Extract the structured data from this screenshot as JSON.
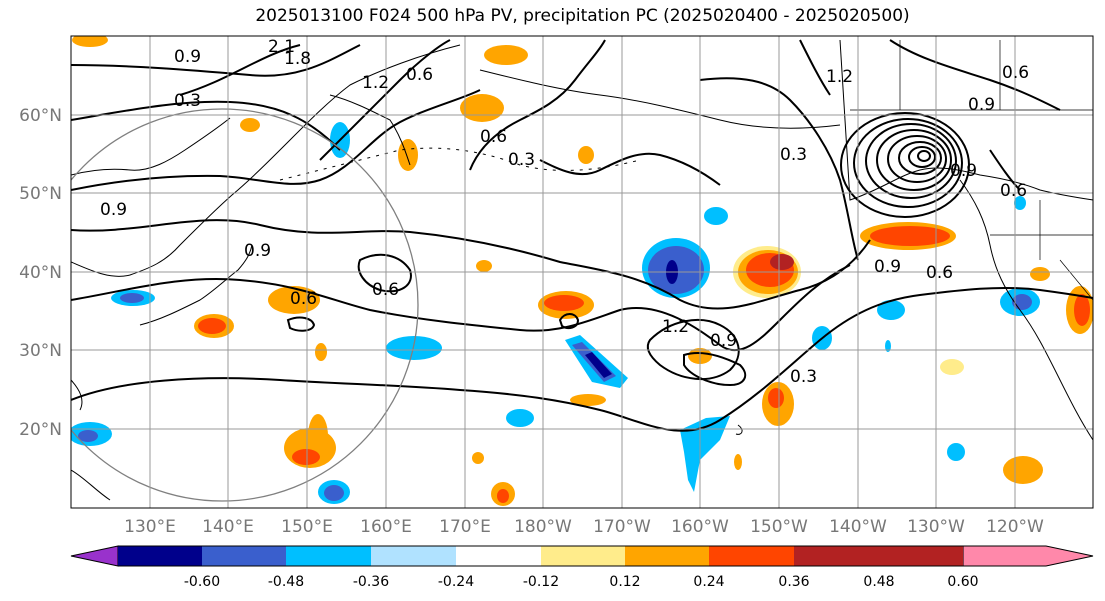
{
  "title": "2025013100 F024 500 hPa PV, precipitation PC (2025020400 - 2025020500)",
  "lat_labels": [
    "60°N",
    "50°N",
    "40°N",
    "30°N",
    "20°N"
  ],
  "lon_labels": [
    "130°E",
    "140°E",
    "150°E",
    "160°E",
    "170°E",
    "180°W",
    "170°W",
    "160°W",
    "150°W",
    "140°W",
    "130°W",
    "120°W"
  ],
  "colorbar": {
    "tick_labels": [
      "-0.60",
      "-0.48",
      "-0.36",
      "-0.24",
      "-0.12",
      "0.12",
      "0.24",
      "0.36",
      "0.48",
      "0.60"
    ],
    "colors": [
      "#9932CC",
      "#00008B",
      "#3A5FCD",
      "#00BFFF",
      "#B0E2FF",
      "#FFFFFF",
      "#FFEC8B",
      "#FFA500",
      "#FF4500",
      "#B22222",
      "#FF88AA"
    ]
  },
  "contour_labels": [
    "2.1",
    "1.8",
    "0.9",
    "1.2",
    "0.6",
    "0.3",
    "0.6",
    "0.3",
    "0.9",
    "0.9",
    "0.6",
    "0.6",
    "1.2",
    "0.9",
    "0.3",
    "0.3",
    "0.9",
    "0.6",
    "0.6",
    "1.2",
    "0.9",
    "0.6",
    "0.9"
  ]
}
